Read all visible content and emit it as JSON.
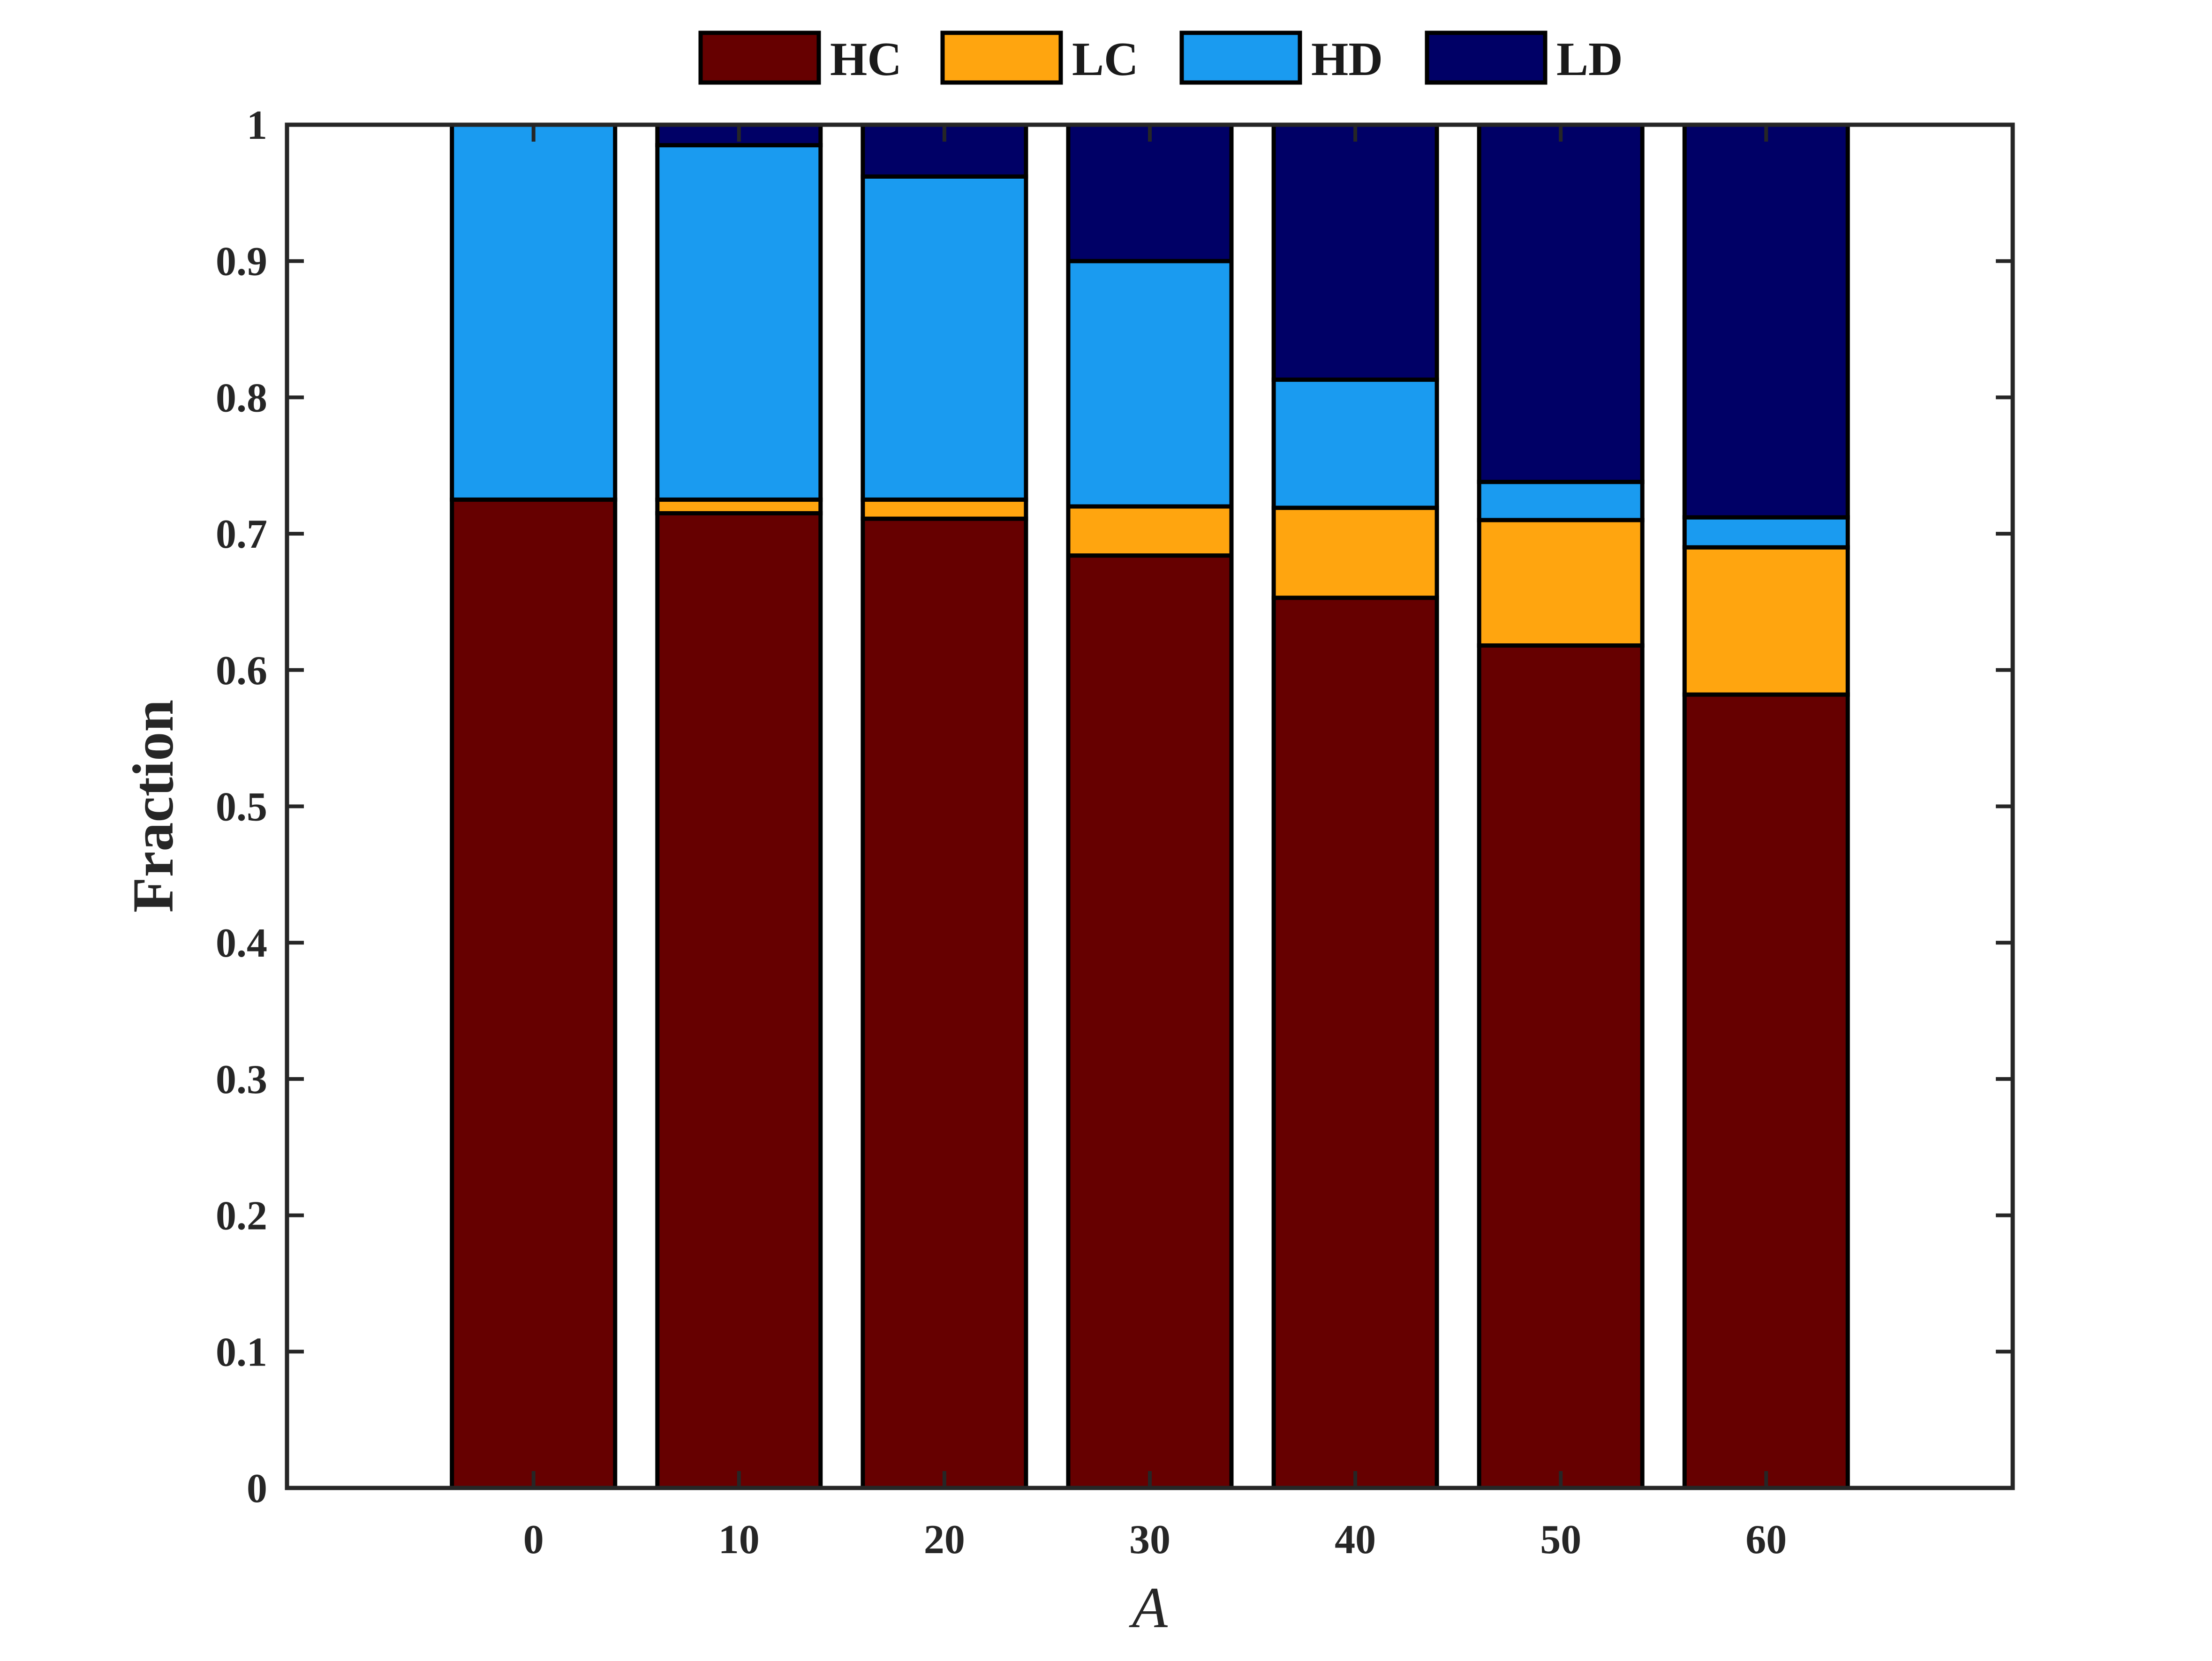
{
  "chart_data": {
    "type": "bar",
    "stacked": true,
    "categories": [
      "0",
      "10",
      "20",
      "30",
      "40",
      "50",
      "60"
    ],
    "series": [
      {
        "name": "HC",
        "color": "#660000",
        "values": [
          0.725,
          0.715,
          0.711,
          0.684,
          0.653,
          0.618,
          0.582
        ]
      },
      {
        "name": "LC",
        "color": "#FFA50F",
        "values": [
          0.0,
          0.01,
          0.014,
          0.036,
          0.066,
          0.092,
          0.108
        ]
      },
      {
        "name": "HD",
        "color": "#1A9BF0",
        "values": [
          0.275,
          0.26,
          0.237,
          0.18,
          0.094,
          0.028,
          0.022
        ]
      },
      {
        "name": "LD",
        "color": "#000066",
        "values": [
          0.0,
          0.015,
          0.038,
          0.1,
          0.187,
          0.262,
          0.288
        ]
      }
    ],
    "xlabel": "A",
    "ylabel": "Fraction",
    "ylim": [
      0,
      1
    ],
    "yticks": [
      "0",
      "0.1",
      "0.2",
      "0.3",
      "0.4",
      "0.5",
      "0.6",
      "0.7",
      "0.8",
      "0.9",
      "1"
    ],
    "xlim": [
      -12,
      72
    ],
    "grid": false,
    "legend_position": "top-center-outside"
  }
}
